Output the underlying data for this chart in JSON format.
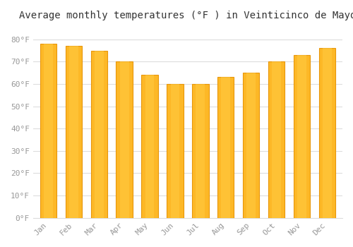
{
  "title": "Average monthly temperatures (°F ) in Veinticinco de Mayo",
  "months": [
    "Jan",
    "Feb",
    "Mar",
    "Apr",
    "May",
    "Jun",
    "Jul",
    "Aug",
    "Sep",
    "Oct",
    "Nov",
    "Dec"
  ],
  "values": [
    78,
    77,
    75,
    70,
    64,
    60,
    60,
    63,
    65,
    70,
    73,
    76
  ],
  "bar_color": "#FDB827",
  "bar_edge_color": "#E8960A",
  "background_color": "#FFFFFF",
  "grid_color": "#DDDDDD",
  "ytick_labels": [
    "0°F",
    "10°F",
    "20°F",
    "30°F",
    "40°F",
    "50°F",
    "60°F",
    "70°F",
    "80°F"
  ],
  "ytick_values": [
    0,
    10,
    20,
    30,
    40,
    50,
    60,
    70,
    80
  ],
  "ylim": [
    0,
    85
  ],
  "title_fontsize": 10,
  "tick_fontsize": 8,
  "tick_color": "#999999",
  "font_family": "monospace"
}
